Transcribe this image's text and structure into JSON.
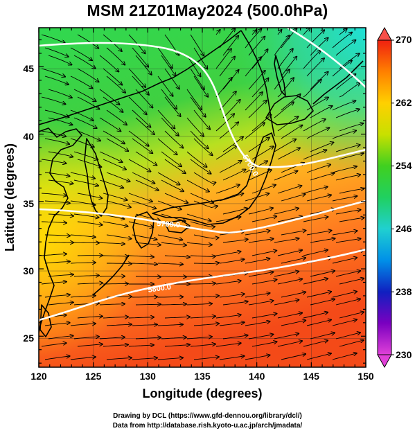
{
  "title": "MSM 21Z01May2024 (500.0hPa)",
  "axes": {
    "xlabel": "Longitude (degrees)",
    "ylabel": "Latitude  (degrees)",
    "x_ticks": [
      "120",
      "125",
      "130",
      "135",
      "140",
      "145",
      "150"
    ],
    "y_ticks": [
      "25",
      "30",
      "35",
      "40",
      "45"
    ]
  },
  "colorbar": {
    "ticks": [
      "230",
      "238",
      "246",
      "254",
      "262",
      "270"
    ],
    "stops": [
      "#e040d8",
      "#7a00c0",
      "#1020c0",
      "#0090e8",
      "#20d0d0",
      "#20d060",
      "#40d020",
      "#c8e000",
      "#ffd000",
      "#ff8000",
      "#f02010"
    ]
  },
  "map": {
    "lon_range": [
      120,
      150
    ],
    "lat_range": [
      22.7,
      47.9
    ],
    "contour_labels": [
      "5700.0",
      "5700.0",
      "5800.0"
    ]
  },
  "credit": {
    "line1": "Drawing by DCL (https://www.gfd-dennou.org/library/dcl/)",
    "line2": "Data from http://database.rish.kyoto-u.ac.jp/arch/jmadata/"
  }
}
